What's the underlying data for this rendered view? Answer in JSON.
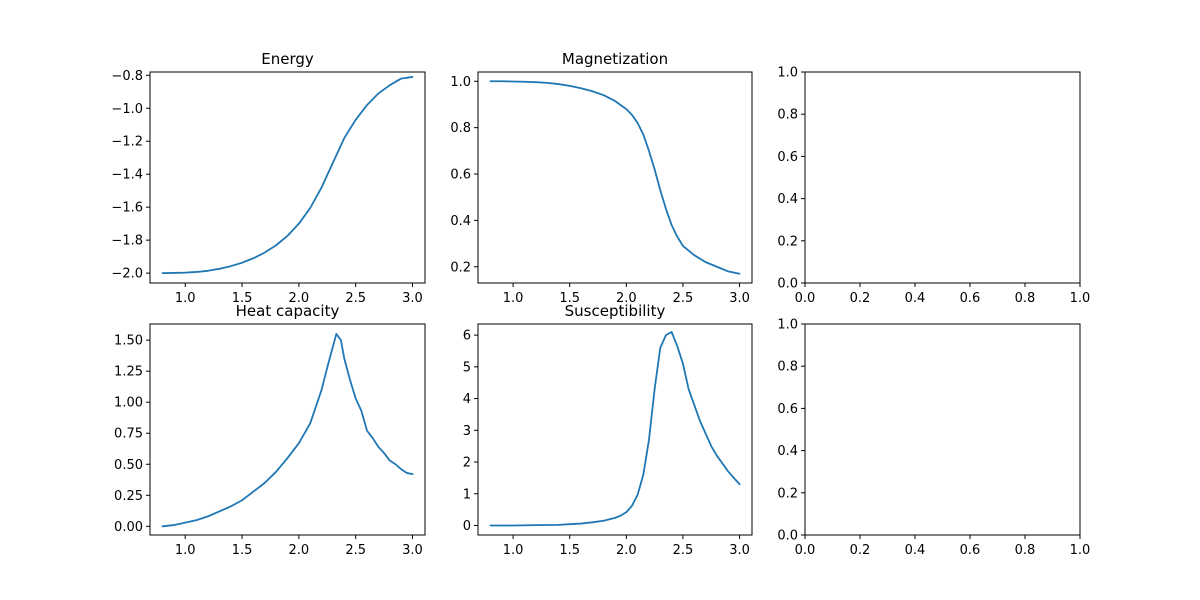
{
  "figure": {},
  "colors": {
    "series": "#1f77b4",
    "axes": "#000000",
    "background": "#ffffff"
  },
  "chart_data": [
    {
      "type": "line",
      "title": "Energy",
      "xlabel": "",
      "ylabel": "",
      "xlim": [
        0.69,
        3.11
      ],
      "ylim": [
        -2.06,
        -0.78
      ],
      "xticks": [
        1.0,
        1.5,
        2.0,
        2.5,
        3.0
      ],
      "xtick_labels": [
        "1.0",
        "1.5",
        "2.0",
        "2.5",
        "3.0"
      ],
      "yticks": [
        -2.0,
        -1.8,
        -1.6,
        -1.4,
        -1.2,
        -1.0,
        -0.8
      ],
      "ytick_labels": [
        "−2.0",
        "−1.8",
        "−1.6",
        "−1.4",
        "−1.2",
        "−1.0",
        "−0.8"
      ],
      "grid": false,
      "series": [
        {
          "x": [
            0.8,
            0.9,
            1.0,
            1.1,
            1.2,
            1.3,
            1.4,
            1.5,
            1.6,
            1.7,
            1.8,
            1.9,
            2.0,
            2.1,
            2.2,
            2.3,
            2.4,
            2.5,
            2.6,
            2.7,
            2.8,
            2.9,
            3.0
          ],
          "y": [
            -2.0,
            -1.999,
            -1.997,
            -1.993,
            -1.986,
            -1.974,
            -1.958,
            -1.937,
            -1.91,
            -1.875,
            -1.831,
            -1.774,
            -1.7,
            -1.605,
            -1.48,
            -1.33,
            -1.18,
            -1.07,
            -0.98,
            -0.91,
            -0.86,
            -0.82,
            -0.81
          ]
        }
      ]
    },
    {
      "type": "line",
      "title": "Magnetization",
      "xlabel": "",
      "ylabel": "",
      "xlim": [
        0.69,
        3.11
      ],
      "ylim": [
        0.13,
        1.04
      ],
      "xticks": [
        1.0,
        1.5,
        2.0,
        2.5,
        3.0
      ],
      "xtick_labels": [
        "1.0",
        "1.5",
        "2.0",
        "2.5",
        "3.0"
      ],
      "yticks": [
        0.2,
        0.4,
        0.6,
        0.8,
        1.0
      ],
      "ytick_labels": [
        "0.2",
        "0.4",
        "0.6",
        "0.8",
        "1.0"
      ],
      "grid": false,
      "series": [
        {
          "x": [
            0.8,
            0.9,
            1.0,
            1.1,
            1.2,
            1.3,
            1.4,
            1.5,
            1.6,
            1.7,
            1.8,
            1.9,
            2.0,
            2.05,
            2.1,
            2.15,
            2.2,
            2.25,
            2.3,
            2.35,
            2.4,
            2.45,
            2.5,
            2.6,
            2.7,
            2.8,
            2.9,
            3.0
          ],
          "y": [
            1.0,
            1.0,
            0.999,
            0.998,
            0.996,
            0.993,
            0.988,
            0.98,
            0.97,
            0.957,
            0.94,
            0.915,
            0.88,
            0.855,
            0.82,
            0.77,
            0.7,
            0.62,
            0.53,
            0.45,
            0.38,
            0.33,
            0.29,
            0.25,
            0.22,
            0.2,
            0.18,
            0.17
          ]
        }
      ]
    },
    {
      "type": "line",
      "title": "",
      "xlabel": "",
      "ylabel": "",
      "xlim": [
        0.0,
        1.0
      ],
      "ylim": [
        0.0,
        1.0
      ],
      "xticks": [
        0.0,
        0.2,
        0.4,
        0.6,
        0.8,
        1.0
      ],
      "xtick_labels": [
        "0.0",
        "0.2",
        "0.4",
        "0.6",
        "0.8",
        "1.0"
      ],
      "yticks": [
        0.0,
        0.2,
        0.4,
        0.6,
        0.8,
        1.0
      ],
      "ytick_labels": [
        "0.0",
        "0.2",
        "0.4",
        "0.6",
        "0.8",
        "1.0"
      ],
      "grid": false,
      "series": []
    },
    {
      "type": "line",
      "title": "Heat capacity",
      "xlabel": "",
      "ylabel": "",
      "xlim": [
        0.69,
        3.11
      ],
      "ylim": [
        -0.07,
        1.63
      ],
      "xticks": [
        1.0,
        1.5,
        2.0,
        2.5,
        3.0
      ],
      "xtick_labels": [
        "1.0",
        "1.5",
        "2.0",
        "2.5",
        "3.0"
      ],
      "yticks": [
        0.0,
        0.25,
        0.5,
        0.75,
        1.0,
        1.25,
        1.5
      ],
      "ytick_labels": [
        "0.00",
        "0.25",
        "0.50",
        "0.75",
        "1.00",
        "1.25",
        "1.50"
      ],
      "grid": false,
      "series": [
        {
          "x": [
            0.8,
            0.9,
            1.0,
            1.1,
            1.2,
            1.3,
            1.4,
            1.5,
            1.6,
            1.7,
            1.8,
            1.9,
            2.0,
            2.1,
            2.2,
            2.25,
            2.3,
            2.33,
            2.37,
            2.4,
            2.45,
            2.5,
            2.55,
            2.6,
            2.65,
            2.7,
            2.75,
            2.8,
            2.85,
            2.9,
            2.95,
            3.0
          ],
          "y": [
            0.0,
            0.01,
            0.03,
            0.05,
            0.08,
            0.12,
            0.16,
            0.21,
            0.28,
            0.35,
            0.44,
            0.55,
            0.67,
            0.83,
            1.1,
            1.28,
            1.45,
            1.55,
            1.5,
            1.35,
            1.18,
            1.03,
            0.93,
            0.77,
            0.71,
            0.64,
            0.59,
            0.53,
            0.5,
            0.46,
            0.43,
            0.42
          ]
        }
      ]
    },
    {
      "type": "line",
      "title": "Susceptibility",
      "xlabel": "",
      "ylabel": "",
      "xlim": [
        0.69,
        3.11
      ],
      "ylim": [
        -0.3,
        6.35
      ],
      "xticks": [
        1.0,
        1.5,
        2.0,
        2.5,
        3.0
      ],
      "xtick_labels": [
        "1.0",
        "1.5",
        "2.0",
        "2.5",
        "3.0"
      ],
      "yticks": [
        0,
        1,
        2,
        3,
        4,
        5,
        6
      ],
      "ytick_labels": [
        "0",
        "1",
        "2",
        "3",
        "4",
        "5",
        "6"
      ],
      "grid": false,
      "series": [
        {
          "x": [
            0.8,
            1.0,
            1.2,
            1.4,
            1.5,
            1.6,
            1.7,
            1.8,
            1.9,
            1.95,
            2.0,
            2.05,
            2.1,
            2.15,
            2.2,
            2.25,
            2.3,
            2.35,
            2.4,
            2.45,
            2.5,
            2.55,
            2.6,
            2.65,
            2.7,
            2.75,
            2.8,
            2.9,
            3.0
          ],
          "y": [
            0.0,
            0.0,
            0.01,
            0.02,
            0.04,
            0.06,
            0.1,
            0.15,
            0.24,
            0.31,
            0.42,
            0.62,
            0.97,
            1.6,
            2.7,
            4.3,
            5.6,
            6.0,
            6.1,
            5.65,
            5.1,
            4.3,
            3.8,
            3.3,
            2.9,
            2.5,
            2.2,
            1.7,
            1.3
          ]
        }
      ]
    },
    {
      "type": "line",
      "title": "",
      "xlabel": "",
      "ylabel": "",
      "xlim": [
        0.0,
        1.0
      ],
      "ylim": [
        0.0,
        1.0
      ],
      "xticks": [
        0.0,
        0.2,
        0.4,
        0.6,
        0.8,
        1.0
      ],
      "xtick_labels": [
        "0.0",
        "0.2",
        "0.4",
        "0.6",
        "0.8",
        "1.0"
      ],
      "yticks": [
        0.0,
        0.2,
        0.4,
        0.6,
        0.8,
        1.0
      ],
      "ytick_labels": [
        "0.0",
        "0.2",
        "0.4",
        "0.6",
        "0.8",
        "1.0"
      ],
      "grid": false,
      "series": []
    }
  ]
}
